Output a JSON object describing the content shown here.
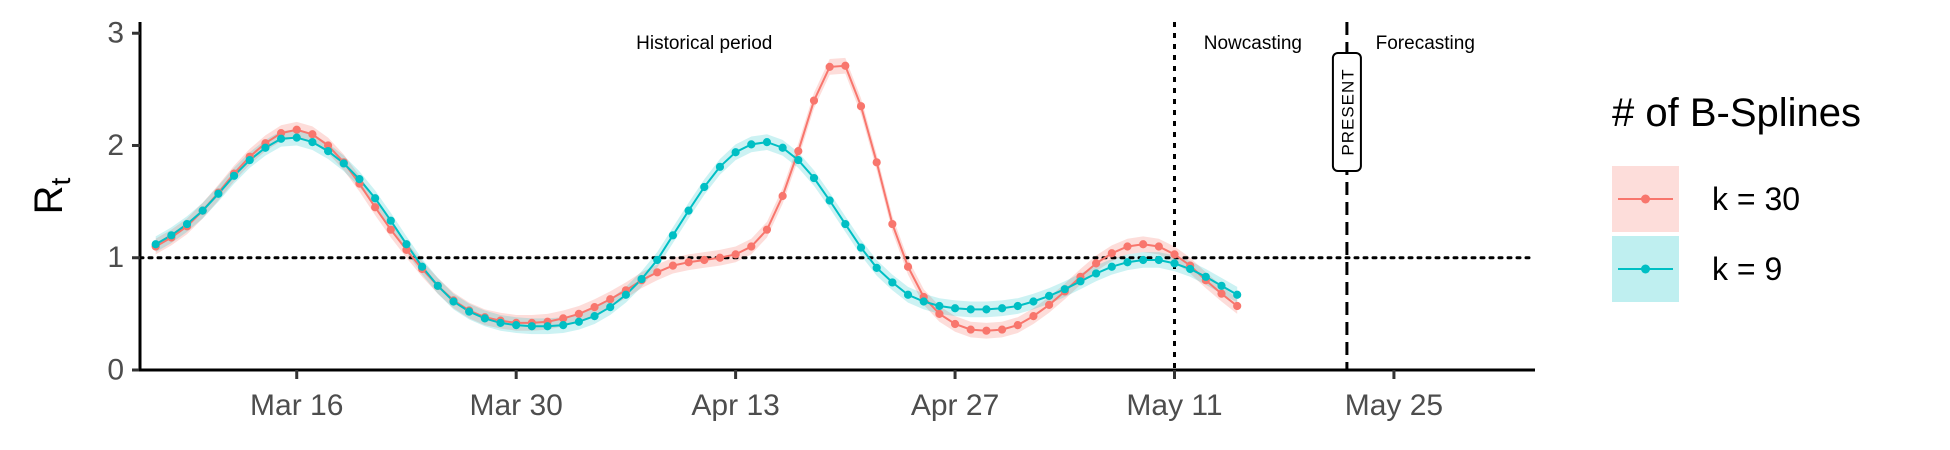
{
  "chart_data": {
    "type": "line",
    "ylabel": "R",
    "ylabel_sub": "t",
    "ylim": [
      0,
      3.1
    ],
    "yticks": [
      0,
      1,
      2,
      3
    ],
    "xlim": [
      "2020-03-06",
      "2020-06-03"
    ],
    "xticks": [
      {
        "date": "2020-03-16",
        "label": "Mar 16"
      },
      {
        "date": "2020-03-30",
        "label": "Mar 30"
      },
      {
        "date": "2020-04-13",
        "label": "Apr 13"
      },
      {
        "date": "2020-04-27",
        "label": "Apr 27"
      },
      {
        "date": "2020-05-11",
        "label": "May 11"
      },
      {
        "date": "2020-05-25",
        "label": "May 25"
      }
    ],
    "reference_line_y": 1,
    "vlines": [
      {
        "date": "2020-05-11",
        "style": "dotted"
      },
      {
        "date": "2020-05-22",
        "style": "dashed",
        "label": "PRESENT"
      }
    ],
    "annotations": [
      {
        "text": "Historical period",
        "date": "2020-04-11"
      },
      {
        "text": "Nowcasting",
        "date": "2020-05-16"
      },
      {
        "text": "Forecasting",
        "date": "2020-05-27"
      }
    ],
    "grid": false,
    "legend": {
      "title": "# of B-Splines",
      "placement": "right"
    },
    "series": [
      {
        "name": "k = 30",
        "color": "#F8766D",
        "x_start": "2020-03-07",
        "values": [
          1.1,
          1.18,
          1.28,
          1.42,
          1.58,
          1.75,
          1.9,
          2.02,
          2.11,
          2.14,
          2.1,
          2.0,
          1.85,
          1.66,
          1.45,
          1.25,
          1.07,
          0.9,
          0.75,
          0.62,
          0.53,
          0.47,
          0.44,
          0.42,
          0.42,
          0.43,
          0.46,
          0.5,
          0.56,
          0.63,
          0.71,
          0.8,
          0.87,
          0.93,
          0.96,
          0.98,
          1.0,
          1.03,
          1.1,
          1.25,
          1.55,
          1.95,
          2.4,
          2.7,
          2.71,
          2.35,
          1.85,
          1.3,
          0.92,
          0.65,
          0.5,
          0.41,
          0.36,
          0.35,
          0.36,
          0.4,
          0.48,
          0.58,
          0.7,
          0.83,
          0.95,
          1.04,
          1.1,
          1.12,
          1.1,
          1.03,
          0.93,
          0.8,
          0.68,
          0.57
        ]
      },
      {
        "name": "k = 9",
        "color": "#00BFC4",
        "x_start": "2020-03-07",
        "values": [
          1.12,
          1.2,
          1.3,
          1.42,
          1.57,
          1.73,
          1.87,
          1.98,
          2.06,
          2.07,
          2.03,
          1.95,
          1.84,
          1.7,
          1.53,
          1.33,
          1.12,
          0.92,
          0.75,
          0.61,
          0.52,
          0.46,
          0.42,
          0.4,
          0.39,
          0.39,
          0.4,
          0.43,
          0.48,
          0.56,
          0.67,
          0.81,
          0.98,
          1.2,
          1.42,
          1.63,
          1.81,
          1.94,
          2.01,
          2.03,
          1.98,
          1.87,
          1.71,
          1.51,
          1.3,
          1.09,
          0.91,
          0.78,
          0.67,
          0.61,
          0.57,
          0.55,
          0.54,
          0.54,
          0.55,
          0.57,
          0.61,
          0.66,
          0.72,
          0.79,
          0.86,
          0.92,
          0.96,
          0.98,
          0.98,
          0.95,
          0.9,
          0.83,
          0.75,
          0.67
        ]
      }
    ]
  }
}
